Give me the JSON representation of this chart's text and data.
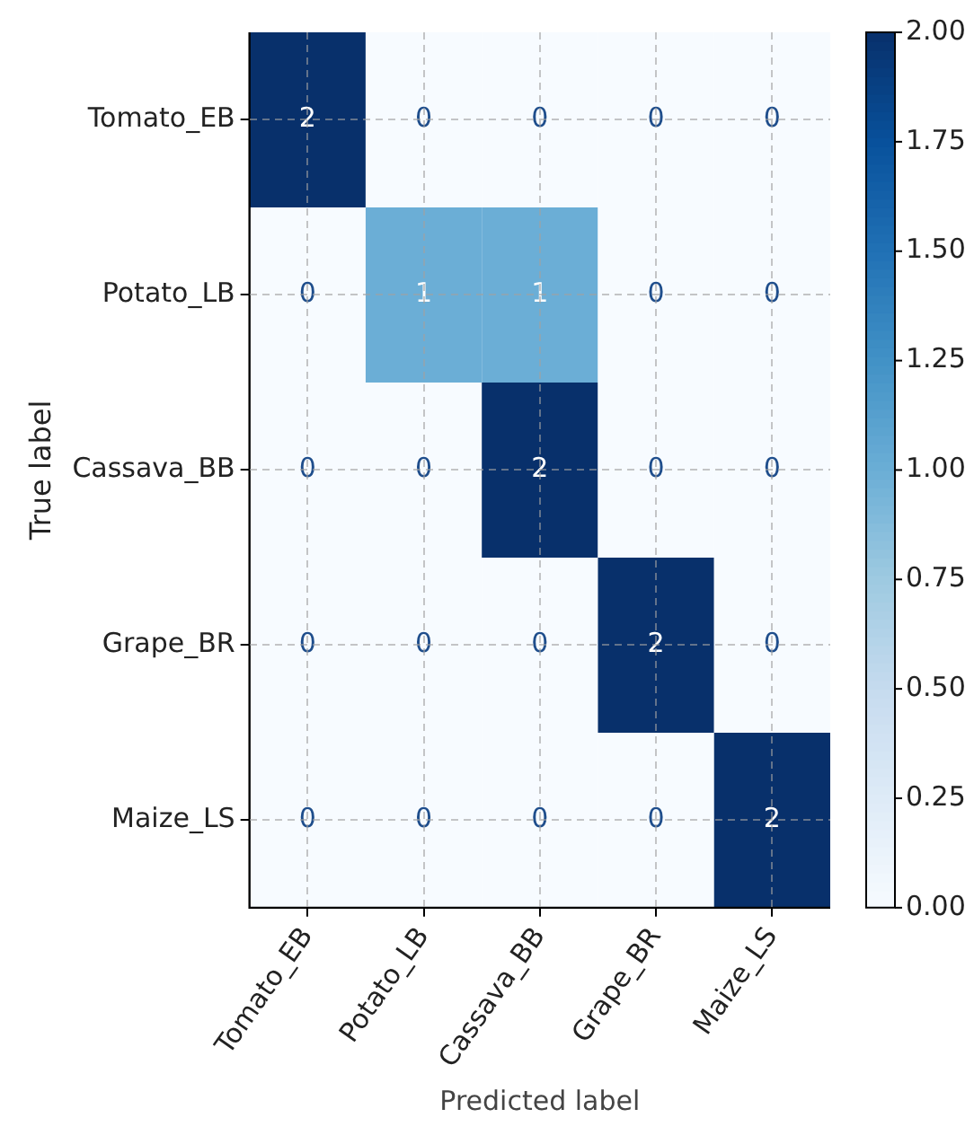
{
  "chart_data": {
    "type": "heatmap",
    "xlabel": "Predicted label",
    "ylabel": "True label",
    "categories": [
      "Tomato_EB",
      "Potato_LB",
      "Cassava_BB",
      "Grape_BR",
      "Maize_LS"
    ],
    "y_categories": [
      "Tomato_EB",
      "Potato_LB",
      "Cassava_BB",
      "Grape_BR",
      "Maize_LS"
    ],
    "cells": [
      [
        2,
        0,
        0,
        0,
        0
      ],
      [
        0,
        1,
        1,
        0,
        0
      ],
      [
        0,
        0,
        2,
        0,
        0
      ],
      [
        0,
        0,
        0,
        2,
        0
      ],
      [
        0,
        0,
        0,
        0,
        2
      ]
    ],
    "clim": [
      0,
      2
    ],
    "cticks": [
      {
        "value": 0,
        "label": "0.00"
      },
      {
        "value": 0.25,
        "label": "0.25"
      },
      {
        "value": 0.5,
        "label": "0.50"
      },
      {
        "value": 0.75,
        "label": "0.75"
      },
      {
        "value": 1,
        "label": "1.00"
      },
      {
        "value": 1.25,
        "label": "1.25"
      },
      {
        "value": 1.5,
        "label": "1.50"
      },
      {
        "value": 1.75,
        "label": "1.75"
      },
      {
        "value": 2,
        "label": "2.00"
      }
    ],
    "grid": true,
    "data_labels": true
  }
}
